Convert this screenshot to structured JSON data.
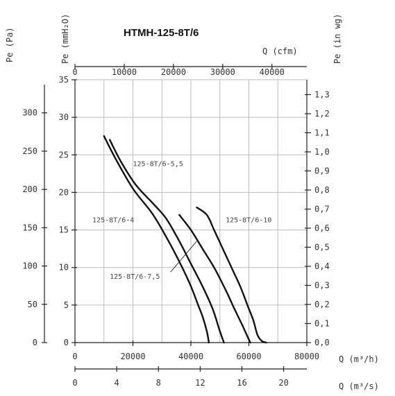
{
  "chart_data": {
    "type": "line",
    "title": "HTMH-125-8T/6",
    "axes": {
      "x_bottom": {
        "label": "Q (m³/h)",
        "range": [
          0,
          80000
        ],
        "ticks": [
          "0",
          "20000",
          "40000",
          "60000",
          "80000"
        ],
        "tick_values": [
          0,
          20000,
          40000,
          60000,
          80000
        ]
      },
      "x_bottom2": {
        "label": "Q (m³/s)",
        "range": [
          0,
          22.22
        ],
        "ticks": [
          "0",
          "4",
          "8",
          "12",
          "16",
          "20"
        ],
        "tick_values": [
          0,
          4,
          8,
          12,
          16,
          20
        ]
      },
      "x_top": {
        "label": "Q (cfm)",
        "range": [
          0,
          47086
        ],
        "ticks": [
          "0",
          "10000",
          "20000",
          "30000",
          "40000"
        ],
        "tick_values": [
          0,
          10000,
          20000,
          30000,
          40000
        ]
      },
      "y_left_mm": {
        "label": "Pe (mmH₂O)",
        "range": [
          0,
          35
        ],
        "ticks": [
          "0",
          "5",
          "10",
          "15",
          "20",
          "25",
          "30",
          "35"
        ],
        "tick_values": [
          0,
          5,
          10,
          15,
          20,
          25,
          30,
          35
        ]
      },
      "y_left_pa": {
        "label": "Pe (Pa)",
        "range": [
          0,
          343.2
        ],
        "ticks": [
          "0",
          "50",
          "100",
          "150",
          "200",
          "250",
          "300"
        ],
        "tick_values": [
          0,
          50,
          100,
          150,
          200,
          250,
          300
        ]
      },
      "y_right_inwg": {
        "label": "Pe (in wg)",
        "range": [
          0,
          1.378
        ],
        "ticks": [
          "0,0",
          "0,1",
          "0,2",
          "0,3",
          "0,4",
          "0,5",
          "0,6",
          "0,7",
          "0,8",
          "0,9",
          "1,0",
          "1,1",
          "1,2",
          "1,3"
        ],
        "tick_values": [
          0,
          0.1,
          0.2,
          0.3,
          0.4,
          0.5,
          0.6,
          0.7,
          0.8,
          0.9,
          1.0,
          1.1,
          1.2,
          1.3
        ]
      }
    },
    "grid": true,
    "series": [
      {
        "name": "125-8T/6-4",
        "x": [
          10000,
          14000,
          20000,
          27000,
          33000,
          37000,
          40000,
          42500,
          44000,
          45500,
          46200
        ],
        "y": [
          27.5,
          24.5,
          20.5,
          17,
          13,
          10,
          7.5,
          5,
          3.5,
          1.5,
          0
        ]
      },
      {
        "name": "125-8T/6-5,5",
        "x": [
          12000,
          16000,
          21000,
          27000,
          31500,
          36000,
          40000,
          44000,
          47500,
          50000,
          51400
        ],
        "y": [
          27,
          24,
          21,
          18.5,
          16.5,
          13.5,
          10.5,
          7.5,
          4.5,
          1.5,
          0
        ]
      },
      {
        "name": "125-8T/6-7,5",
        "x": [
          36000,
          40000,
          44000,
          48000,
          52000,
          55000,
          57500,
          59300,
          60500
        ],
        "y": [
          17,
          15,
          12.5,
          10,
          7,
          4.5,
          2.5,
          1,
          0
        ]
      },
      {
        "name": "125-8T/6-10",
        "x": [
          42000,
          45500,
          48000,
          51000,
          54000,
          57000,
          59500,
          61500,
          63000,
          64500,
          66000
        ],
        "y": [
          18,
          17,
          15,
          12.5,
          10,
          7.5,
          5,
          3,
          1,
          0.2,
          0
        ]
      }
    ],
    "curve_labels": [
      {
        "text": "125-8T/6-5,5",
        "x": 20000,
        "y": 23.5
      },
      {
        "text": "125-8T/6-4",
        "x": 6000,
        "y": 16
      },
      {
        "text": "125-8T/6-7,5",
        "x": 12000,
        "y": 8.5
      },
      {
        "text": "125-8T/6-10",
        "x": 52000,
        "y": 16
      }
    ]
  }
}
